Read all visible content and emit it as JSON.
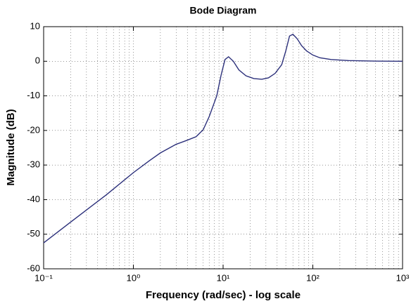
{
  "chart_data": {
    "type": "line",
    "title": "Bode Diagram",
    "x_label": "Frequency  (rad/sec) - log scale",
    "y_label": "Magnitude (dB)",
    "x_scale": "log",
    "grid": true,
    "xlim": [
      0.1,
      1000
    ],
    "ylim": [
      -60,
      10
    ],
    "xticks": [
      {
        "value": 0.1,
        "label": "10⁻¹"
      },
      {
        "value": 1,
        "label": "10⁰"
      },
      {
        "value": 10,
        "label": "10¹"
      },
      {
        "value": 100,
        "label": "10²"
      },
      {
        "value": 1000,
        "label": "10³"
      }
    ],
    "yticks": [
      -60,
      -50,
      -40,
      -30,
      -20,
      -10,
      0,
      10
    ],
    "x": [
      0.1,
      0.2,
      0.5,
      1,
      1.5,
      2,
      3,
      4,
      5,
      6,
      7,
      8.5,
      9.5,
      10.5,
      11.5,
      13,
      15,
      18,
      22,
      27,
      32,
      38,
      45,
      50,
      55,
      60,
      67,
      75,
      85,
      100,
      120,
      160,
      250,
      500,
      1000
    ],
    "series": [
      {
        "name": "Magnitude",
        "color": "#2b2f7a",
        "values": [
          -52.5,
          -46.5,
          -38.6,
          -32.2,
          -28.8,
          -26.5,
          -24,
          -22.8,
          -21.8,
          -19.8,
          -16,
          -10,
          -4,
          0.5,
          1.3,
          0,
          -2.5,
          -4.2,
          -5,
          -5.2,
          -4.8,
          -3.5,
          -1,
          3,
          7.3,
          7.8,
          6.5,
          4.5,
          3,
          1.8,
          1,
          0.5,
          0.2,
          0.05,
          0
        ]
      }
    ]
  }
}
